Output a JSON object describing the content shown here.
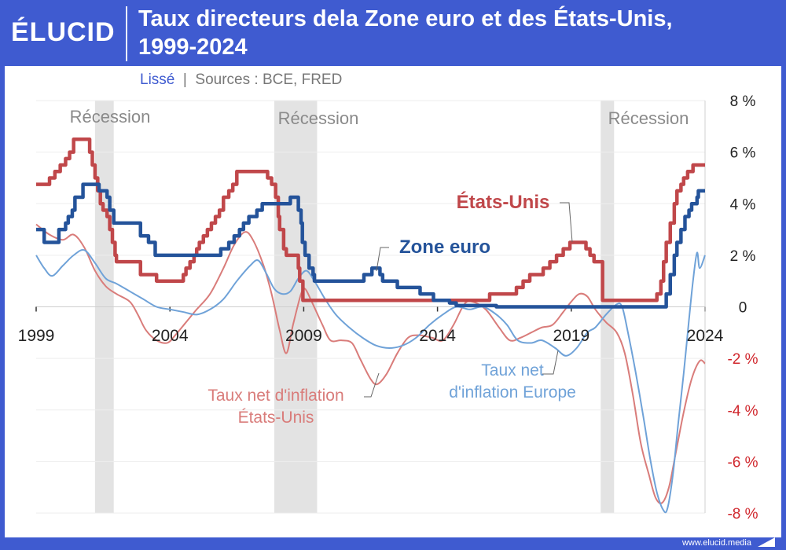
{
  "header": {
    "logo": "ÉLUCID",
    "title_line1": "Taux directeurs dela Zone euro et des États-Unis,",
    "title_line2": "1999-2024"
  },
  "subtitle": {
    "smoothing": "Lissé",
    "separator": "|",
    "sources": "Sources : BCE, FRED"
  },
  "footer": {
    "url": "www.elucid.media"
  },
  "colors": {
    "us": "#c0474a",
    "eu": "#24539a",
    "us_net": "#d97c7a",
    "eu_net": "#6fa2d8",
    "recession": "#e3e3e3",
    "brand": "#3f5bd0",
    "negative_tick": "#d0262c"
  },
  "chart_data": {
    "type": "line",
    "xlim": [
      1999,
      2024
    ],
    "ylim": [
      -8,
      8
    ],
    "x_ticks": [
      1999,
      2004,
      2009,
      2014,
      2019,
      2024
    ],
    "x_tick_labels": [
      "1999",
      "2004",
      "2009",
      "2014",
      "2019",
      "2024"
    ],
    "y_ticks": [
      8,
      6,
      4,
      2,
      0,
      -2,
      -4,
      -6,
      -8
    ],
    "y_tick_labels": [
      "8 %",
      "6 %",
      "4 %",
      "2 %",
      "0",
      "-2 %",
      "-4 %",
      "-6 %",
      "-8 %"
    ],
    "grid": true,
    "recessions": [
      {
        "start": 2001.2,
        "end": 2001.9,
        "label": "Récession"
      },
      {
        "start": 2007.9,
        "end": 2009.5,
        "label": "Récession"
      },
      {
        "start": 2020.1,
        "end": 2020.6,
        "label": "Récession"
      }
    ],
    "series": [
      {
        "name": "États-Unis",
        "role": "us",
        "step": true,
        "points": [
          [
            1999,
            4.75
          ],
          [
            1999.5,
            5.0
          ],
          [
            1999.7,
            5.25
          ],
          [
            1999.9,
            5.5
          ],
          [
            2000.1,
            5.75
          ],
          [
            2000.25,
            6.0
          ],
          [
            2000.4,
            6.5
          ],
          [
            2001.0,
            6.0
          ],
          [
            2001.1,
            5.5
          ],
          [
            2001.2,
            5.0
          ],
          [
            2001.3,
            4.5
          ],
          [
            2001.4,
            4.0
          ],
          [
            2001.5,
            3.75
          ],
          [
            2001.65,
            3.5
          ],
          [
            2001.75,
            3.0
          ],
          [
            2001.85,
            2.5
          ],
          [
            2001.95,
            2.0
          ],
          [
            2002.0,
            1.75
          ],
          [
            2002.9,
            1.25
          ],
          [
            2003.5,
            1.0
          ],
          [
            2004.5,
            1.25
          ],
          [
            2004.6,
            1.5
          ],
          [
            2004.75,
            1.75
          ],
          [
            2004.9,
            2.0
          ],
          [
            2005.0,
            2.25
          ],
          [
            2005.1,
            2.5
          ],
          [
            2005.25,
            2.75
          ],
          [
            2005.4,
            3.0
          ],
          [
            2005.55,
            3.25
          ],
          [
            2005.7,
            3.5
          ],
          [
            2005.85,
            3.75
          ],
          [
            2006.0,
            4.25
          ],
          [
            2006.2,
            4.5
          ],
          [
            2006.35,
            4.75
          ],
          [
            2006.5,
            5.25
          ],
          [
            2007.65,
            5.0
          ],
          [
            2007.8,
            4.75
          ],
          [
            2007.95,
            4.25
          ],
          [
            2008.05,
            3.5
          ],
          [
            2008.1,
            3.0
          ],
          [
            2008.25,
            2.25
          ],
          [
            2008.35,
            2.0
          ],
          [
            2008.8,
            1.5
          ],
          [
            2008.85,
            1.0
          ],
          [
            2008.97,
            0.25
          ],
          [
            2015.95,
            0.5
          ],
          [
            2016.95,
            0.75
          ],
          [
            2017.2,
            1.0
          ],
          [
            2017.45,
            1.25
          ],
          [
            2017.95,
            1.5
          ],
          [
            2018.2,
            1.75
          ],
          [
            2018.45,
            2.0
          ],
          [
            2018.7,
            2.25
          ],
          [
            2018.95,
            2.5
          ],
          [
            2019.55,
            2.25
          ],
          [
            2019.7,
            2.0
          ],
          [
            2019.85,
            1.75
          ],
          [
            2020.17,
            0.25
          ],
          [
            2022.2,
            0.5
          ],
          [
            2022.35,
            1.0
          ],
          [
            2022.45,
            1.75
          ],
          [
            2022.55,
            2.5
          ],
          [
            2022.7,
            3.25
          ],
          [
            2022.85,
            4.0
          ],
          [
            2022.95,
            4.5
          ],
          [
            2023.1,
            4.75
          ],
          [
            2023.2,
            5.0
          ],
          [
            2023.35,
            5.25
          ],
          [
            2023.55,
            5.5
          ],
          [
            2024.0,
            5.5
          ]
        ]
      },
      {
        "name": "Zone euro",
        "role": "eu",
        "step": true,
        "points": [
          [
            1999,
            3.0
          ],
          [
            1999.3,
            2.5
          ],
          [
            1999.85,
            3.0
          ],
          [
            2000.1,
            3.25
          ],
          [
            2000.2,
            3.5
          ],
          [
            2000.35,
            3.75
          ],
          [
            2000.45,
            4.25
          ],
          [
            2000.75,
            4.75
          ],
          [
            2001.35,
            4.5
          ],
          [
            2001.65,
            4.25
          ],
          [
            2001.75,
            3.75
          ],
          [
            2001.9,
            3.25
          ],
          [
            2002.9,
            2.75
          ],
          [
            2003.2,
            2.5
          ],
          [
            2003.45,
            2.0
          ],
          [
            2005.9,
            2.25
          ],
          [
            2006.2,
            2.5
          ],
          [
            2006.4,
            2.75
          ],
          [
            2006.6,
            3.0
          ],
          [
            2006.75,
            3.25
          ],
          [
            2006.95,
            3.5
          ],
          [
            2007.25,
            3.75
          ],
          [
            2007.45,
            4.0
          ],
          [
            2008.5,
            4.25
          ],
          [
            2008.8,
            3.75
          ],
          [
            2008.9,
            3.25
          ],
          [
            2008.95,
            2.5
          ],
          [
            2009.05,
            2.0
          ],
          [
            2009.2,
            1.5
          ],
          [
            2009.35,
            1.25
          ],
          [
            2009.4,
            1.0
          ],
          [
            2011.25,
            1.25
          ],
          [
            2011.55,
            1.5
          ],
          [
            2011.85,
            1.25
          ],
          [
            2011.95,
            1.0
          ],
          [
            2012.5,
            0.75
          ],
          [
            2013.35,
            0.5
          ],
          [
            2013.85,
            0.25
          ],
          [
            2014.45,
            0.15
          ],
          [
            2014.7,
            0.05
          ],
          [
            2016.2,
            0.0
          ],
          [
            2022.55,
            0.5
          ],
          [
            2022.7,
            1.25
          ],
          [
            2022.85,
            2.0
          ],
          [
            2022.95,
            2.5
          ],
          [
            2023.1,
            3.0
          ],
          [
            2023.25,
            3.5
          ],
          [
            2023.4,
            3.75
          ],
          [
            2023.5,
            4.0
          ],
          [
            2023.7,
            4.25
          ],
          [
            2023.75,
            4.5
          ],
          [
            2024.0,
            4.5
          ]
        ]
      },
      {
        "name": "Taux net d'inflation États-Unis",
        "role": "us_net",
        "step": false,
        "points": [
          [
            1999,
            3.2
          ],
          [
            1999.5,
            2.8
          ],
          [
            2000.0,
            2.6
          ],
          [
            2000.4,
            2.8
          ],
          [
            2000.8,
            2.3
          ],
          [
            2001.2,
            1.4
          ],
          [
            2001.6,
            0.8
          ],
          [
            2002.0,
            0.5
          ],
          [
            2002.5,
            0.2
          ],
          [
            2002.8,
            -0.3
          ],
          [
            2003.1,
            -0.9
          ],
          [
            2003.5,
            -1.3
          ],
          [
            2003.9,
            -1.4
          ],
          [
            2004.2,
            -1.1
          ],
          [
            2004.6,
            -0.6
          ],
          [
            2005.0,
            -0.1
          ],
          [
            2005.5,
            0.5
          ],
          [
            2006.0,
            1.5
          ],
          [
            2006.4,
            2.4
          ],
          [
            2006.8,
            2.9
          ],
          [
            2007.1,
            2.6
          ],
          [
            2007.5,
            1.6
          ],
          [
            2007.8,
            0.5
          ],
          [
            2008.1,
            -0.9
          ],
          [
            2008.35,
            -1.8
          ],
          [
            2008.6,
            -0.7
          ],
          [
            2008.9,
            0.5
          ],
          [
            2009.05,
            0.7
          ],
          [
            2009.3,
            0.2
          ],
          [
            2009.7,
            -0.7
          ],
          [
            2010.0,
            -1.3
          ],
          [
            2010.4,
            -1.3
          ],
          [
            2010.8,
            -1.4
          ],
          [
            2011.1,
            -2.0
          ],
          [
            2011.5,
            -2.8
          ],
          [
            2011.75,
            -3.0
          ],
          [
            2012.1,
            -2.6
          ],
          [
            2012.5,
            -1.8
          ],
          [
            2012.9,
            -1.2
          ],
          [
            2013.3,
            -1.1
          ],
          [
            2013.8,
            -1.2
          ],
          [
            2014.2,
            -1.3
          ],
          [
            2014.6,
            -0.7
          ],
          [
            2015.0,
            0.1
          ],
          [
            2015.3,
            0.2
          ],
          [
            2015.8,
            -0.1
          ],
          [
            2016.3,
            -0.8
          ],
          [
            2016.7,
            -1.3
          ],
          [
            2017.1,
            -1.2
          ],
          [
            2017.5,
            -1.0
          ],
          [
            2017.9,
            -0.8
          ],
          [
            2018.3,
            -0.7
          ],
          [
            2018.7,
            -0.2
          ],
          [
            2019.0,
            0.2
          ],
          [
            2019.3,
            0.5
          ],
          [
            2019.6,
            0.4
          ],
          [
            2019.9,
            -0.1
          ],
          [
            2020.3,
            -0.6
          ],
          [
            2020.7,
            -1.0
          ],
          [
            2021.0,
            -1.8
          ],
          [
            2021.3,
            -3.4
          ],
          [
            2021.6,
            -5.3
          ],
          [
            2021.9,
            -6.5
          ],
          [
            2022.15,
            -7.4
          ],
          [
            2022.4,
            -7.6
          ],
          [
            2022.65,
            -7.0
          ],
          [
            2022.9,
            -5.7
          ],
          [
            2023.2,
            -4.1
          ],
          [
            2023.5,
            -2.8
          ],
          [
            2023.8,
            -2.1
          ],
          [
            2024.0,
            -2.2
          ]
        ]
      },
      {
        "name": "Taux net d'inflation Europe",
        "role": "eu_net",
        "step": false,
        "points": [
          [
            1999,
            2.0
          ],
          [
            1999.3,
            1.5
          ],
          [
            1999.6,
            1.2
          ],
          [
            2000.0,
            1.6
          ],
          [
            2000.4,
            2.0
          ],
          [
            2000.8,
            2.2
          ],
          [
            2001.2,
            1.7
          ],
          [
            2001.6,
            1.1
          ],
          [
            2002.0,
            0.9
          ],
          [
            2002.5,
            0.6
          ],
          [
            2003.0,
            0.3
          ],
          [
            2003.5,
            0.0
          ],
          [
            2004.0,
            -0.1
          ],
          [
            2004.5,
            -0.2
          ],
          [
            2005.0,
            -0.3
          ],
          [
            2005.5,
            -0.1
          ],
          [
            2006.0,
            0.3
          ],
          [
            2006.5,
            1.0
          ],
          [
            2007.0,
            1.6
          ],
          [
            2007.3,
            1.8
          ],
          [
            2007.6,
            1.3
          ],
          [
            2007.9,
            0.7
          ],
          [
            2008.2,
            0.5
          ],
          [
            2008.5,
            0.6
          ],
          [
            2008.8,
            1.1
          ],
          [
            2009.1,
            1.4
          ],
          [
            2009.4,
            1.0
          ],
          [
            2009.8,
            0.3
          ],
          [
            2010.2,
            -0.3
          ],
          [
            2010.7,
            -0.8
          ],
          [
            2011.2,
            -1.2
          ],
          [
            2011.7,
            -1.5
          ],
          [
            2012.2,
            -1.6
          ],
          [
            2012.7,
            -1.5
          ],
          [
            2013.2,
            -1.2
          ],
          [
            2013.7,
            -0.7
          ],
          [
            2014.2,
            -0.3
          ],
          [
            2014.7,
            0.0
          ],
          [
            2015.2,
            -0.1
          ],
          [
            2015.7,
            0.0
          ],
          [
            2016.2,
            -0.3
          ],
          [
            2016.6,
            -0.7
          ],
          [
            2017.0,
            -1.3
          ],
          [
            2017.5,
            -1.4
          ],
          [
            2017.9,
            -1.3
          ],
          [
            2018.4,
            -1.6
          ],
          [
            2018.8,
            -1.9
          ],
          [
            2019.2,
            -1.6
          ],
          [
            2019.6,
            -1.0
          ],
          [
            2019.9,
            -0.8
          ],
          [
            2020.3,
            -0.3
          ],
          [
            2020.7,
            0.1
          ],
          [
            2020.9,
            0.0
          ],
          [
            2021.1,
            -0.9
          ],
          [
            2021.4,
            -2.5
          ],
          [
            2021.7,
            -4.3
          ],
          [
            2021.95,
            -5.9
          ],
          [
            2022.2,
            -7.2
          ],
          [
            2022.45,
            -7.9
          ],
          [
            2022.6,
            -7.8
          ],
          [
            2022.8,
            -6.5
          ],
          [
            2023.0,
            -4.5
          ],
          [
            2023.2,
            -2.6
          ],
          [
            2023.4,
            -0.5
          ],
          [
            2023.55,
            1.0
          ],
          [
            2023.7,
            2.1
          ],
          [
            2023.8,
            1.5
          ],
          [
            2024.0,
            2.0
          ]
        ]
      }
    ],
    "annotations": [
      {
        "role": "us",
        "lines": [
          "États-Unis"
        ]
      },
      {
        "role": "eu",
        "lines": [
          "Zone euro"
        ]
      },
      {
        "role": "eu_net",
        "lines": [
          "Taux net",
          "d'inflation Europe"
        ]
      },
      {
        "role": "us_net",
        "lines": [
          "Taux net d'inflation",
          "États-Unis"
        ]
      }
    ]
  }
}
